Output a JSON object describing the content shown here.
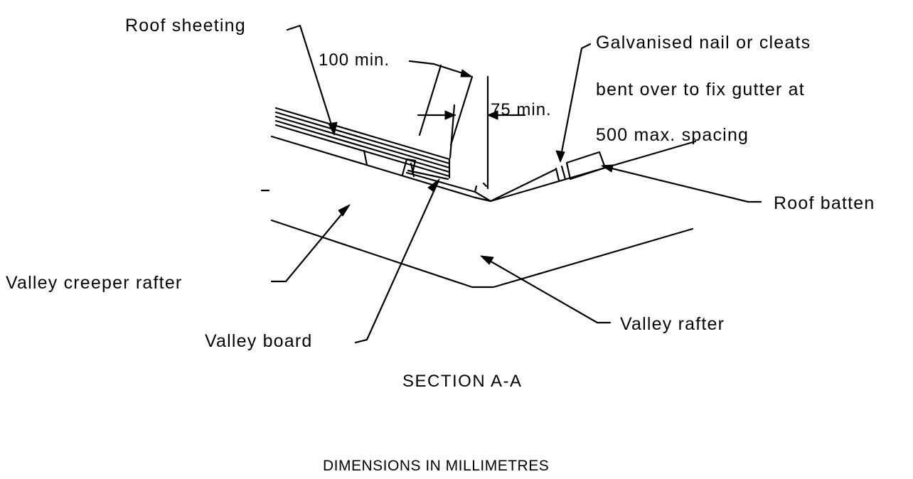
{
  "labels": {
    "roof_sheeting": "Roof sheeting",
    "galvanised_line1": "Galvanised nail or cleats",
    "galvanised_line2": "bent over to fix gutter at",
    "galvanised_line3": "500 max. spacing",
    "roof_batten": "Roof batten",
    "valley_creeper_rafter": "Valley creeper rafter",
    "valley_board": "Valley board",
    "valley_rafter": "Valley rafter"
  },
  "dimensions": {
    "overlap": "100 min.",
    "gap": "75 min."
  },
  "section_title": "SECTION A-A",
  "units_note": "DIMENSIONS IN MILLIMETRES"
}
